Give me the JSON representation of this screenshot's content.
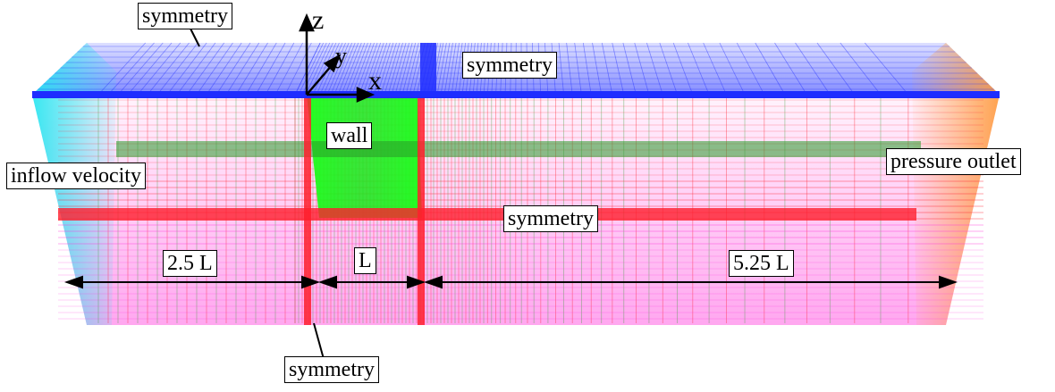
{
  "boundary_labels": {
    "symmetry_top_left": "symmetry",
    "symmetry_top": "symmetry",
    "wall": "wall",
    "inflow": "inflow velocity",
    "outflow": "pressure outlet",
    "symmetry_mid": "symmetry",
    "symmetry_bottom": "symmetry"
  },
  "dimensions": {
    "upstream": "2.5 L",
    "body": "L",
    "downstream": "5.25 L"
  },
  "axes": {
    "x": "x",
    "y": "y",
    "z": "z"
  },
  "colors": {
    "top_face": "#1e2dff",
    "wall": "#19ff19",
    "mesh_red": "#ff1e2d",
    "bottom_face": "#ff2bd9",
    "inflow_face": "#22e6f0",
    "outlet_face": "#ff9a3c"
  }
}
